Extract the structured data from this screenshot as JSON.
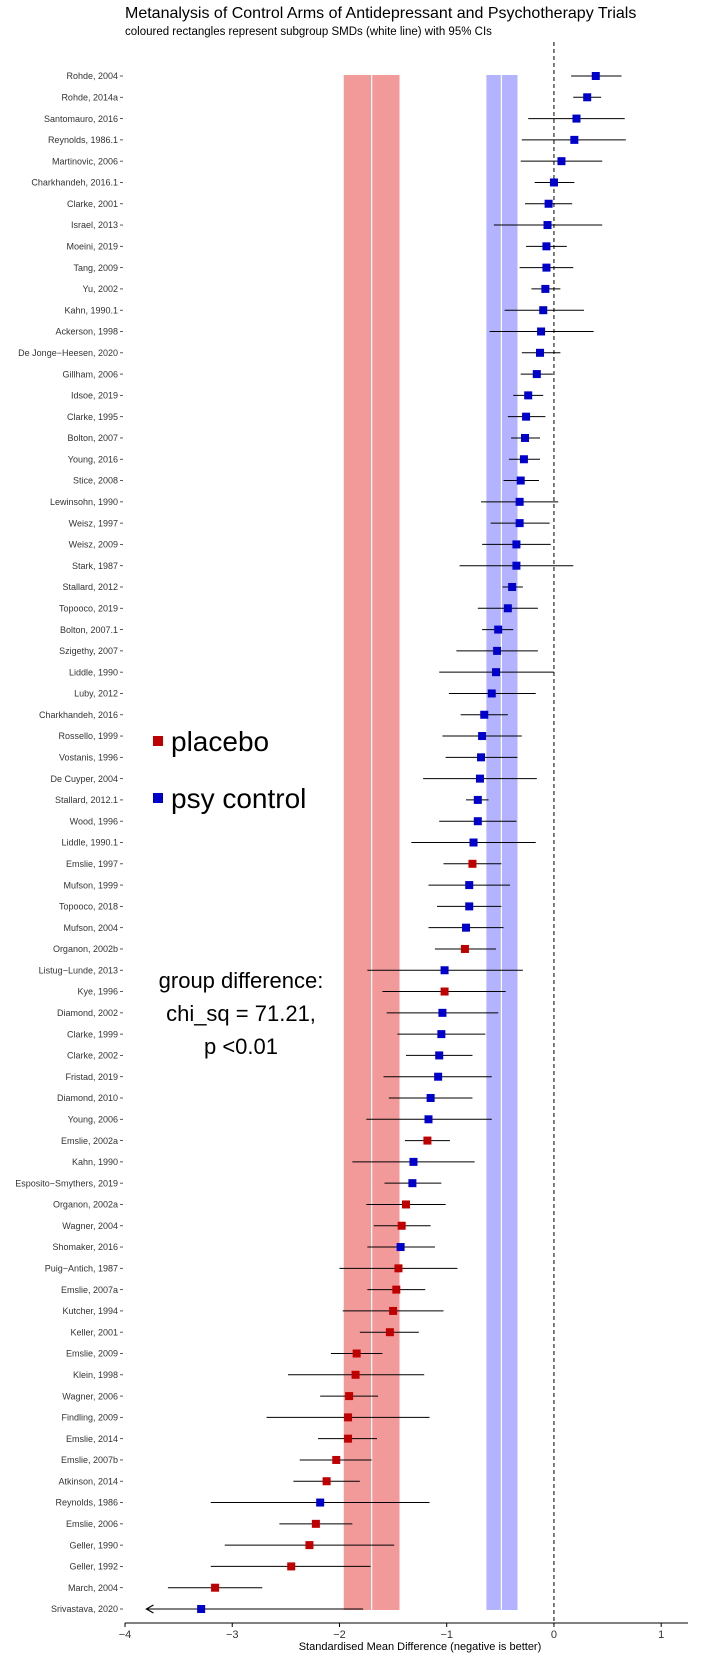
{
  "chart_data": {
    "type": "forest",
    "title": "Metanalysis of Control Arms of Antidepressant and Psychotherapy Trials",
    "subtitle": "coloured rectangles represent subgroup SMDs (white line) with 95% CIs",
    "xlabel": "Standardised Mean Difference (negative is better)",
    "xlim": [
      -4.0,
      1.25
    ],
    "xticks": [
      -4,
      -3,
      -2,
      -1,
      0,
      1
    ],
    "reference_line_x": 0,
    "grid": false,
    "colors": {
      "placebo": "#c00000",
      "psy control": "#0000cc",
      "placebo_band": "#f29a9a",
      "psy_band": "#b3b3ff"
    },
    "legend": {
      "placement": "middle-left",
      "entries": [
        {
          "name": "placebo",
          "color": "#c00000"
        },
        {
          "name": "psy control",
          "color": "#0000cc"
        }
      ]
    },
    "subgroups": [
      {
        "group": "placebo",
        "estimate": -1.7,
        "ci": [
          -1.96,
          -1.44
        ]
      },
      {
        "group": "psy control",
        "estimate": -0.49,
        "ci": [
          -0.63,
          -0.34
        ]
      }
    ],
    "annotation": [
      "group difference:",
      "chi_sq = 71.21,",
      "p <0.01"
    ],
    "studies": [
      {
        "label": "Rohde, 2004",
        "group": "psy control",
        "est": 0.39,
        "lo": 0.16,
        "hi": 0.63
      },
      {
        "label": "Rohde, 2014a",
        "group": "psy control",
        "est": 0.31,
        "lo": 0.18,
        "hi": 0.44
      },
      {
        "label": "Santomauro, 2016",
        "group": "psy control",
        "est": 0.21,
        "lo": -0.24,
        "hi": 0.66
      },
      {
        "label": "Reynolds, 1986.1",
        "group": "psy control",
        "est": 0.19,
        "lo": -0.3,
        "hi": 0.67
      },
      {
        "label": "Martinovic, 2006",
        "group": "psy control",
        "est": 0.07,
        "lo": -0.31,
        "hi": 0.45
      },
      {
        "label": "Charkhandeh, 2016.1",
        "group": "psy control",
        "est": 0.0,
        "lo": -0.18,
        "hi": 0.19
      },
      {
        "label": "Clarke, 2001",
        "group": "psy control",
        "est": -0.05,
        "lo": -0.27,
        "hi": 0.17
      },
      {
        "label": "Israel, 2013",
        "group": "psy control",
        "est": -0.06,
        "lo": -0.56,
        "hi": 0.45
      },
      {
        "label": "Moeini, 2019",
        "group": "psy control",
        "est": -0.07,
        "lo": -0.26,
        "hi": 0.12
      },
      {
        "label": "Tang, 2009",
        "group": "psy control",
        "est": -0.07,
        "lo": -0.32,
        "hi": 0.18
      },
      {
        "label": "Yu, 2002",
        "group": "psy control",
        "est": -0.08,
        "lo": -0.21,
        "hi": 0.06
      },
      {
        "label": "Kahn, 1990.1",
        "group": "psy control",
        "est": -0.1,
        "lo": -0.46,
        "hi": 0.28
      },
      {
        "label": "Ackerson, 1998",
        "group": "psy control",
        "est": -0.12,
        "lo": -0.6,
        "hi": 0.37
      },
      {
        "label": "De Jonge−Heesen, 2020",
        "group": "psy control",
        "est": -0.13,
        "lo": -0.3,
        "hi": 0.06
      },
      {
        "label": "Gillham, 2006",
        "group": "psy control",
        "est": -0.16,
        "lo": -0.31,
        "hi": -0.01
      },
      {
        "label": "Idsoe, 2019",
        "group": "psy control",
        "est": -0.24,
        "lo": -0.38,
        "hi": -0.1
      },
      {
        "label": "Clarke, 1995",
        "group": "psy control",
        "est": -0.26,
        "lo": -0.43,
        "hi": -0.08
      },
      {
        "label": "Bolton, 2007",
        "group": "psy control",
        "est": -0.27,
        "lo": -0.4,
        "hi": -0.13
      },
      {
        "label": "Young, 2016",
        "group": "psy control",
        "est": -0.28,
        "lo": -0.42,
        "hi": -0.13
      },
      {
        "label": "Stice, 2008",
        "group": "psy control",
        "est": -0.31,
        "lo": -0.47,
        "hi": -0.14
      },
      {
        "label": "Lewinsohn, 1990",
        "group": "psy control",
        "est": -0.32,
        "lo": -0.68,
        "hi": 0.04
      },
      {
        "label": "Weisz, 1997",
        "group": "psy control",
        "est": -0.32,
        "lo": -0.59,
        "hi": -0.04
      },
      {
        "label": "Weisz, 2009",
        "group": "psy control",
        "est": -0.35,
        "lo": -0.67,
        "hi": -0.03
      },
      {
        "label": "Stark, 1987",
        "group": "psy control",
        "est": -0.35,
        "lo": -0.88,
        "hi": 0.18
      },
      {
        "label": "Stallard, 2012",
        "group": "psy control",
        "est": -0.39,
        "lo": -0.48,
        "hi": -0.29
      },
      {
        "label": "Topooco, 2019",
        "group": "psy control",
        "est": -0.43,
        "lo": -0.71,
        "hi": -0.15
      },
      {
        "label": "Bolton, 2007.1",
        "group": "psy control",
        "est": -0.52,
        "lo": -0.67,
        "hi": -0.38
      },
      {
        "label": "Szigethy, 2007",
        "group": "psy control",
        "est": -0.53,
        "lo": -0.91,
        "hi": -0.15
      },
      {
        "label": "Liddle, 1990",
        "group": "psy control",
        "est": -0.54,
        "lo": -1.07,
        "hi": 0.0
      },
      {
        "label": "Luby, 2012",
        "group": "psy control",
        "est": -0.58,
        "lo": -0.98,
        "hi": -0.17
      },
      {
        "label": "Charkhandeh, 2016",
        "group": "psy control",
        "est": -0.65,
        "lo": -0.87,
        "hi": -0.43
      },
      {
        "label": "Rossello, 1999",
        "group": "psy control",
        "est": -0.67,
        "lo": -1.04,
        "hi": -0.3
      },
      {
        "label": "Vostanis, 1996",
        "group": "psy control",
        "est": -0.68,
        "lo": -1.01,
        "hi": -0.34
      },
      {
        "label": "De Cuyper, 2004",
        "group": "psy control",
        "est": -0.69,
        "lo": -1.22,
        "hi": -0.16
      },
      {
        "label": "Stallard, 2012.1",
        "group": "psy control",
        "est": -0.71,
        "lo": -0.82,
        "hi": -0.61
      },
      {
        "label": "Wood, 1996",
        "group": "psy control",
        "est": -0.71,
        "lo": -1.07,
        "hi": -0.35
      },
      {
        "label": "Liddle, 1990.1",
        "group": "psy control",
        "est": -0.75,
        "lo": -1.33,
        "hi": -0.17
      },
      {
        "label": "Emslie, 1997",
        "group": "placebo",
        "est": -0.76,
        "lo": -1.03,
        "hi": -0.49
      },
      {
        "label": "Mufson, 1999",
        "group": "psy control",
        "est": -0.79,
        "lo": -1.17,
        "hi": -0.41
      },
      {
        "label": "Topooco, 2018",
        "group": "psy control",
        "est": -0.79,
        "lo": -1.09,
        "hi": -0.49
      },
      {
        "label": "Mufson, 2004",
        "group": "psy control",
        "est": -0.82,
        "lo": -1.17,
        "hi": -0.47
      },
      {
        "label": "Organon, 2002b",
        "group": "placebo",
        "est": -0.83,
        "lo": -1.11,
        "hi": -0.54
      },
      {
        "label": "Listug−Lunde, 2013",
        "group": "psy control",
        "est": -1.02,
        "lo": -1.74,
        "hi": -0.29
      },
      {
        "label": "Kye, 1996",
        "group": "placebo",
        "est": -1.02,
        "lo": -1.6,
        "hi": -0.45
      },
      {
        "label": "Diamond, 2002",
        "group": "psy control",
        "est": -1.04,
        "lo": -1.56,
        "hi": -0.52
      },
      {
        "label": "Clarke, 1999",
        "group": "psy control",
        "est": -1.05,
        "lo": -1.46,
        "hi": -0.64
      },
      {
        "label": "Clarke, 2002",
        "group": "psy control",
        "est": -1.07,
        "lo": -1.38,
        "hi": -0.76
      },
      {
        "label": "Fristad, 2019",
        "group": "psy control",
        "est": -1.08,
        "lo": -1.59,
        "hi": -0.58
      },
      {
        "label": "Diamond, 2010",
        "group": "psy control",
        "est": -1.15,
        "lo": -1.54,
        "hi": -0.76
      },
      {
        "label": "Young, 2006",
        "group": "psy control",
        "est": -1.17,
        "lo": -1.75,
        "hi": -0.58
      },
      {
        "label": "Emslie, 2002a",
        "group": "placebo",
        "est": -1.18,
        "lo": -1.39,
        "hi": -0.97
      },
      {
        "label": "Kahn, 1990",
        "group": "psy control",
        "est": -1.31,
        "lo": -1.88,
        "hi": -0.74
      },
      {
        "label": "Esposito−Smythers, 2019",
        "group": "psy control",
        "est": -1.32,
        "lo": -1.58,
        "hi": -1.05
      },
      {
        "label": "Organon, 2002a",
        "group": "placebo",
        "est": -1.38,
        "lo": -1.75,
        "hi": -1.01
      },
      {
        "label": "Wagner, 2004",
        "group": "placebo",
        "est": -1.42,
        "lo": -1.68,
        "hi": -1.15
      },
      {
        "label": "Shomaker, 2016",
        "group": "psy control",
        "est": -1.43,
        "lo": -1.74,
        "hi": -1.11
      },
      {
        "label": "Puig−Antich, 1987",
        "group": "placebo",
        "est": -1.45,
        "lo": -2.0,
        "hi": -0.9
      },
      {
        "label": "Emslie, 2007a",
        "group": "placebo",
        "est": -1.47,
        "lo": -1.74,
        "hi": -1.2
      },
      {
        "label": "Kutcher, 1994",
        "group": "placebo",
        "est": -1.5,
        "lo": -1.97,
        "hi": -1.03
      },
      {
        "label": "Keller, 2001",
        "group": "placebo",
        "est": -1.53,
        "lo": -1.81,
        "hi": -1.26
      },
      {
        "label": "Emslie, 2009",
        "group": "placebo",
        "est": -1.84,
        "lo": -2.08,
        "hi": -1.6
      },
      {
        "label": "Klein, 1998",
        "group": "placebo",
        "est": -1.85,
        "lo": -2.48,
        "hi": -1.21
      },
      {
        "label": "Wagner, 2006",
        "group": "placebo",
        "est": -1.91,
        "lo": -2.18,
        "hi": -1.64
      },
      {
        "label": "Findling, 2009",
        "group": "placebo",
        "est": -1.92,
        "lo": -2.68,
        "hi": -1.16
      },
      {
        "label": "Emslie, 2014",
        "group": "placebo",
        "est": -1.92,
        "lo": -2.2,
        "hi": -1.65
      },
      {
        "label": "Emslie, 2007b",
        "group": "placebo",
        "est": -2.03,
        "lo": -2.37,
        "hi": -1.7
      },
      {
        "label": "Atkinson, 2014",
        "group": "placebo",
        "est": -2.12,
        "lo": -2.43,
        "hi": -1.81
      },
      {
        "label": "Reynolds, 1986",
        "group": "psy control",
        "est": -2.18,
        "lo": -3.2,
        "hi": -1.16
      },
      {
        "label": "Emslie, 2006",
        "group": "placebo",
        "est": -2.22,
        "lo": -2.56,
        "hi": -1.88
      },
      {
        "label": "Geller, 1990",
        "group": "placebo",
        "est": -2.28,
        "lo": -3.07,
        "hi": -1.49
      },
      {
        "label": "Geller, 1992",
        "group": "placebo",
        "est": -2.45,
        "lo": -3.2,
        "hi": -1.71
      },
      {
        "label": "March, 2004",
        "group": "placebo",
        "est": -3.16,
        "lo": -3.6,
        "hi": -2.72
      },
      {
        "label": "Srivastava, 2020",
        "group": "psy control",
        "est": -3.29,
        "lo": -3.8,
        "hi": -1.78,
        "lo_truncated": true
      }
    ]
  }
}
